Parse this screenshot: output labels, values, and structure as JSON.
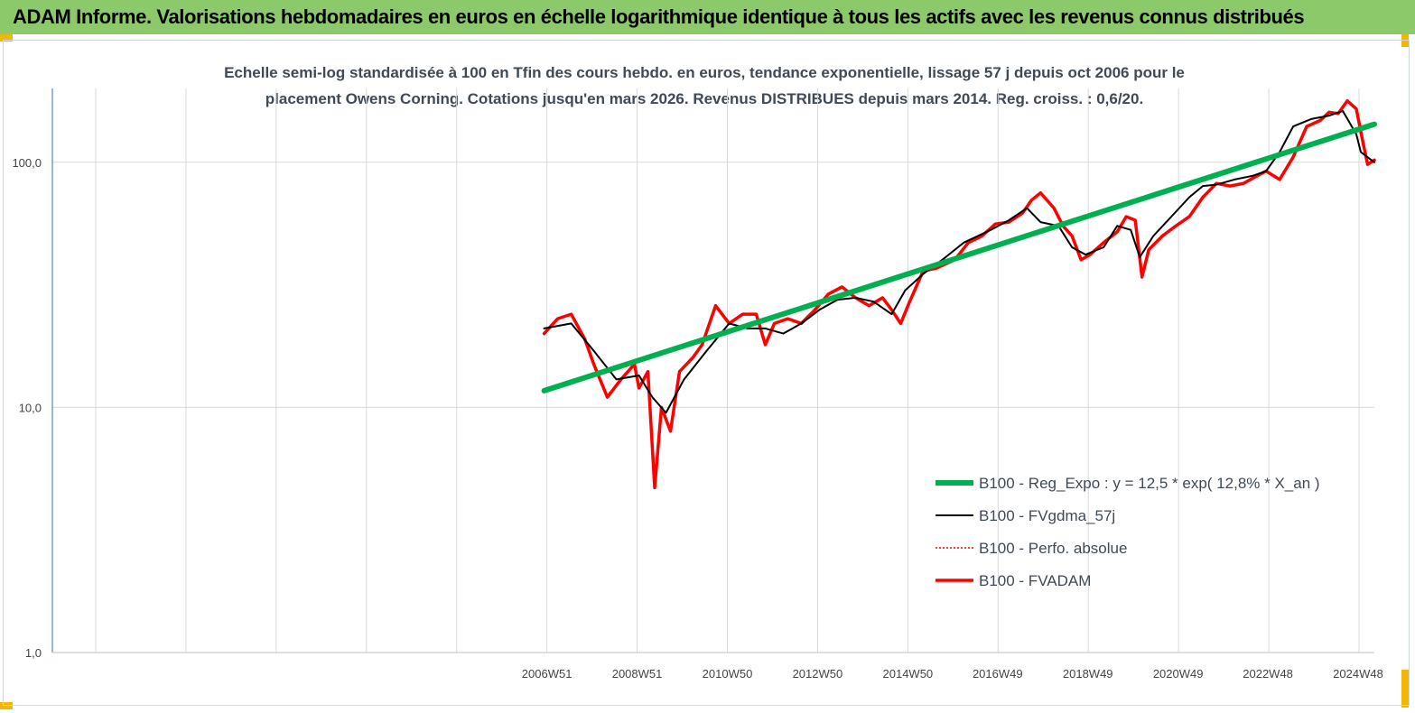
{
  "banner": {
    "title": "ADAM Informe. Valorisations hebdomadaires en euros en échelle logarithmique identique à tous les actifs avec les revenus connus distribués"
  },
  "colors": {
    "banner_bg": "#8cc96a",
    "regression": "#00b050",
    "smoothed": "#000000",
    "perf_absolue": "#ff0000",
    "fvadam": "#ff0000",
    "corner_marks": "#f2b705"
  },
  "chart_data": {
    "type": "line",
    "title_line1": "Echelle semi-log standardisée à 100 en Tfin des cours hebdo. en euros, tendance exponentielle, lissage 57 j depuis oct 2006 pour le",
    "title_line2": "placement Owens Corning. Cotations jusqu'en mars 2026.  Revenus DISTRIBUES depuis mars 2014. Reg. croiss. : 0,6/20.",
    "y_scale": "log",
    "ylim": [
      1,
      200
    ],
    "y_ticks": [
      "1,0",
      "10,0",
      "100,0"
    ],
    "y_tick_values": [
      1,
      10,
      100
    ],
    "x_ticks": [
      "2006W51",
      "2008W51",
      "2010W50",
      "2012W50",
      "2014W50",
      "2016W49",
      "2018W49",
      "2020W49",
      "2022W48",
      "2024W48"
    ],
    "x_tick_years": [
      2006.96,
      2008.96,
      2010.96,
      2012.96,
      2014.96,
      2016.95,
      2018.95,
      2020.95,
      2022.94,
      2024.94
    ],
    "xlim_years": [
      1996.0,
      2025.3
    ],
    "grid": true,
    "legend_position": "bottom-right",
    "series": [
      {
        "name": "B100 - Reg_Expo : y = 12,5 * exp( 12,8% *  X_an )",
        "style": "green-thick",
        "x": [
          2006.9,
          2025.3
        ],
        "y": [
          11.7,
          143
        ]
      },
      {
        "name": "B100 - FVgdma_57j",
        "style": "black-thin",
        "x": [
          2006.9,
          2007.5,
          2008.0,
          2008.5,
          2009.0,
          2009.3,
          2009.6,
          2010.0,
          2010.5,
          2011.0,
          2011.4,
          2011.8,
          2012.2,
          2012.6,
          2013.0,
          2013.4,
          2013.8,
          2014.2,
          2014.6,
          2014.9,
          2015.3,
          2015.8,
          2016.2,
          2016.8,
          2017.2,
          2017.6,
          2017.9,
          2018.3,
          2018.6,
          2018.9,
          2019.3,
          2019.6,
          2019.9,
          2020.1,
          2020.4,
          2020.8,
          2021.2,
          2021.5,
          2021.8,
          2022.2,
          2022.6,
          2022.9,
          2023.2,
          2023.5,
          2023.9,
          2024.3,
          2024.6,
          2024.9,
          2025.0,
          2025.3
        ],
        "y": [
          21,
          22,
          17,
          13,
          13.5,
          11,
          9.5,
          13,
          17,
          22,
          21,
          21,
          20,
          22,
          25,
          27.5,
          28,
          27,
          24,
          30,
          35,
          41,
          47,
          53,
          58,
          65,
          57,
          55,
          45,
          42,
          45,
          55,
          53,
          41,
          50,
          60,
          72,
          80,
          81,
          85,
          88,
          92,
          110,
          140,
          150,
          155,
          162,
          130,
          110,
          100
        ]
      },
      {
        "name": "B100 - Perfo. absolue",
        "style": "red-dotted",
        "x": [
          2006.9,
          2007.2,
          2007.5,
          2007.8,
          2008.0,
          2008.3,
          2008.6,
          2008.9,
          2009.0,
          2009.2,
          2009.35,
          2009.5,
          2009.7,
          2009.9,
          2010.2,
          2010.4,
          2010.7,
          2011.0,
          2011.3,
          2011.6,
          2011.8,
          2012.0,
          2012.3,
          2012.6,
          2012.9,
          2013.2,
          2013.5,
          2013.8,
          2014.1,
          2014.4,
          2014.6,
          2014.8,
          2015.0,
          2015.3,
          2015.6,
          2016.0,
          2016.3,
          2016.6,
          2016.9,
          2017.2,
          2017.5,
          2017.7,
          2017.9,
          2018.2,
          2018.4,
          2018.6,
          2018.8,
          2019.0,
          2019.3,
          2019.6,
          2019.8,
          2020.0,
          2020.15,
          2020.3,
          2020.6,
          2020.9,
          2021.2,
          2021.5,
          2021.8,
          2022.1,
          2022.4,
          2022.7,
          2022.9,
          2023.2,
          2023.5,
          2023.8,
          2024.1,
          2024.3,
          2024.5,
          2024.7,
          2024.9,
          2025.05,
          2025.15,
          2025.3
        ],
        "y": [
          20,
          23,
          24,
          19,
          15,
          11,
          13,
          15,
          12,
          14,
          4.7,
          10,
          8,
          14,
          16,
          18,
          26,
          22,
          24,
          24,
          18,
          22,
          23,
          22,
          25,
          29,
          31,
          28,
          26,
          28,
          25,
          22,
          27,
          36,
          37,
          40,
          47,
          50,
          56,
          57,
          62,
          70,
          75,
          65,
          55,
          50,
          40,
          42,
          47,
          52,
          60,
          58,
          34,
          44,
          50,
          55,
          60,
          72,
          82,
          80,
          82,
          88,
          92,
          85,
          105,
          140,
          148,
          160,
          158,
          178,
          165,
          120,
          98,
          102
        ]
      },
      {
        "name": "B100 - FVADAM",
        "style": "red-thick",
        "x": [
          2006.9,
          2007.2,
          2007.5,
          2007.8,
          2008.0,
          2008.3,
          2008.6,
          2008.9,
          2009.0,
          2009.2,
          2009.35,
          2009.5,
          2009.7,
          2009.9,
          2010.2,
          2010.4,
          2010.7,
          2011.0,
          2011.3,
          2011.6,
          2011.8,
          2012.0,
          2012.3,
          2012.6,
          2012.9,
          2013.2,
          2013.5,
          2013.8,
          2014.1,
          2014.4,
          2014.6,
          2014.8,
          2015.0,
          2015.3,
          2015.6,
          2016.0,
          2016.3,
          2016.6,
          2016.9,
          2017.2,
          2017.5,
          2017.7,
          2017.9,
          2018.2,
          2018.4,
          2018.6,
          2018.8,
          2019.0,
          2019.3,
          2019.6,
          2019.8,
          2020.0,
          2020.15,
          2020.3,
          2020.6,
          2020.9,
          2021.2,
          2021.5,
          2021.8,
          2022.1,
          2022.4,
          2022.7,
          2022.9,
          2023.2,
          2023.5,
          2023.8,
          2024.1,
          2024.3,
          2024.5,
          2024.7,
          2024.9,
          2025.05,
          2025.15,
          2025.3
        ],
        "y": [
          20,
          23,
          24,
          19,
          15,
          11,
          13,
          15,
          12,
          14,
          4.7,
          10,
          8,
          14,
          16,
          18,
          26,
          22,
          24,
          24,
          18,
          22,
          23,
          22,
          25,
          29,
          31,
          28,
          26,
          28,
          25,
          22,
          27,
          36,
          37,
          40,
          47,
          50,
          56,
          57,
          62,
          70,
          75,
          65,
          55,
          50,
          40,
          42,
          47,
          52,
          60,
          58,
          34,
          44,
          50,
          55,
          60,
          72,
          82,
          80,
          82,
          88,
          92,
          85,
          105,
          140,
          148,
          160,
          158,
          178,
          165,
          120,
          98,
          102
        ]
      }
    ]
  }
}
